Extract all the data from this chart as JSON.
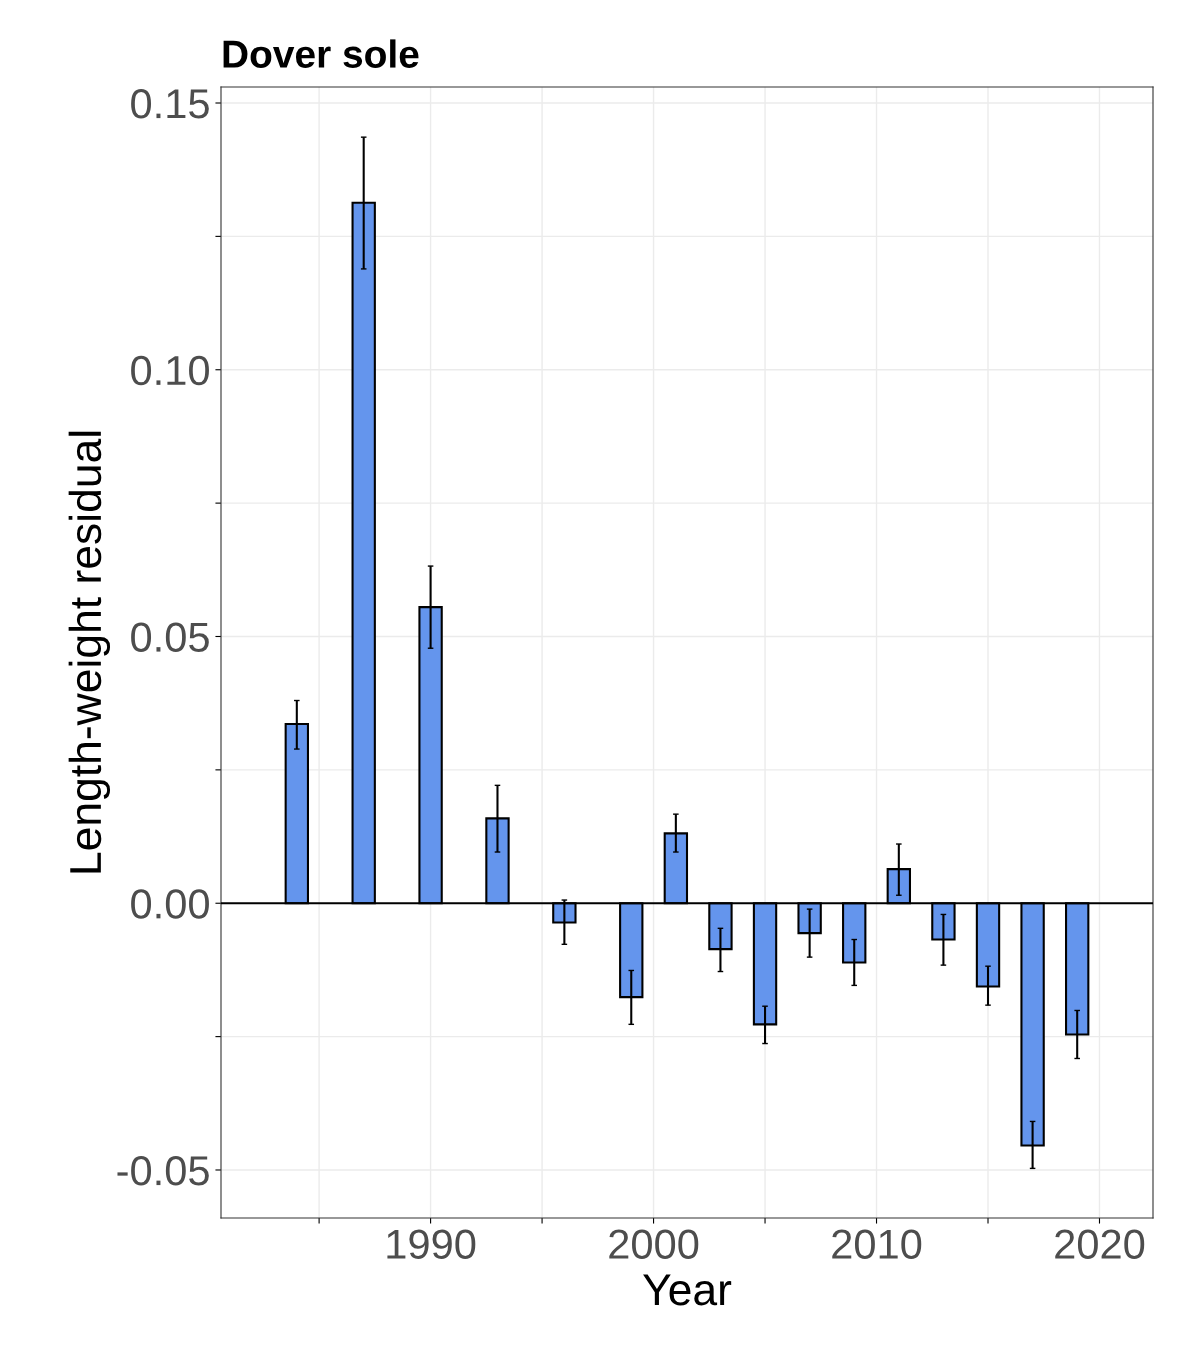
{
  "chart_data": {
    "type": "bar",
    "title": "Dover sole",
    "xlabel": "Year",
    "ylabel": "Length-weight residual",
    "x": [
      1984,
      1987,
      1990,
      1993,
      1996,
      1999,
      2001,
      2003,
      2005,
      2007,
      2009,
      2011,
      2013,
      2015,
      2017,
      2019
    ],
    "values": [
      0.0336,
      0.1313,
      0.0555,
      0.0159,
      -0.0036,
      -0.0176,
      0.0131,
      -0.0086,
      -0.0227,
      -0.0056,
      -0.0111,
      0.0064,
      -0.0068,
      -0.0156,
      -0.0454,
      -0.0246
    ],
    "errors": [
      [
        0.0289,
        0.038
      ],
      [
        0.1189,
        0.1436
      ],
      [
        0.0478,
        0.0632
      ],
      [
        0.0096,
        0.0221
      ],
      [
        -0.0077,
        0.0006
      ],
      [
        -0.0227,
        -0.0126
      ],
      [
        0.0096,
        0.0167
      ],
      [
        -0.0128,
        -0.0047
      ],
      [
        -0.0263,
        -0.0193
      ],
      [
        -0.0101,
        -0.0011
      ],
      [
        -0.0154,
        -0.0068
      ],
      [
        0.0015,
        0.0111
      ],
      [
        -0.0116,
        -0.0021
      ],
      [
        -0.0191,
        -0.0118
      ],
      [
        -0.0497,
        -0.0409
      ],
      [
        -0.0291,
        -0.0201
      ]
    ],
    "color": "#6495ed",
    "xlim": [
      1980.6,
      2022.4
    ],
    "ylim": [
      -0.059,
      0.153
    ],
    "xticks": [
      {
        "value": 1985,
        "label": null
      },
      1990,
      {
        "value": 1995,
        "label": null
      },
      2000,
      {
        "value": 2005,
        "label": null
      },
      2010,
      {
        "value": 2015,
        "label": null
      },
      2020
    ],
    "yticks": [
      {
        "value": -0.05,
        "label": "-0.05"
      },
      {
        "value": -0.025,
        "label": null
      },
      {
        "value": 0,
        "label": "0.00"
      },
      {
        "value": 0.025,
        "label": null
      },
      {
        "value": 0.05,
        "label": "0.05"
      },
      {
        "value": 0.075,
        "label": null
      },
      {
        "value": 0.1,
        "label": "0.10"
      },
      {
        "value": 0.125,
        "label": null
      },
      {
        "value": 0.15,
        "label": "0.15"
      }
    ],
    "ref_lines": [
      {
        "axis": "y",
        "value": 0,
        "color": "#000000"
      }
    ],
    "grid": true
  }
}
